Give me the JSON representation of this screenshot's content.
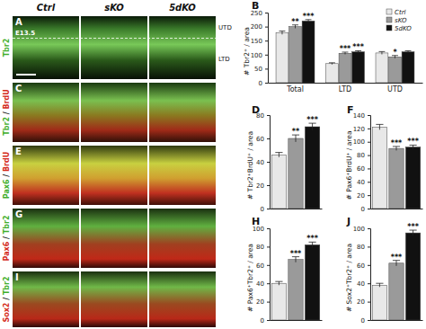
{
  "columns": [
    "Ctrl",
    "sKO",
    "5dKO"
  ],
  "panels": [
    {
      "letter": "A",
      "stain": [
        {
          "text": "Tbr2",
          "color": "#3fae2a"
        }
      ],
      "age": "E13.5",
      "zones": [
        "UTD",
        "LTD"
      ]
    },
    {
      "letter": "C",
      "stain": [
        {
          "text": "Tbr2",
          "color": "#3fae2a"
        },
        {
          "text": " / ",
          "color": "#222222"
        },
        {
          "text": "BrdU",
          "color": "#d42a1a"
        }
      ]
    },
    {
      "letter": "E",
      "stain": [
        {
          "text": "Pax6",
          "color": "#3fae2a"
        },
        {
          "text": " / ",
          "color": "#222222"
        },
        {
          "text": "BrdU",
          "color": "#d42a1a"
        }
      ]
    },
    {
      "letter": "G",
      "stain": [
        {
          "text": "Pax6",
          "color": "#d42a1a"
        },
        {
          "text": " / ",
          "color": "#222222"
        },
        {
          "text": "Tbr2",
          "color": "#3fae2a"
        }
      ]
    },
    {
      "letter": "I",
      "stain": [
        {
          "text": "Sox2",
          "color": "#d42a1a"
        },
        {
          "text": " / ",
          "color": "#222222"
        },
        {
          "text": "Tbr2",
          "color": "#3fae2a"
        }
      ]
    }
  ],
  "chart_data": [
    {
      "type": "bar",
      "title": "B",
      "y_label": "# Tbr2⁺ / area",
      "categories": [
        "Total",
        "LTD",
        "UTD"
      ],
      "series": [
        {
          "name": "Ctrl",
          "color": "#e8e8e8",
          "values": [
            178,
            68,
            106
          ],
          "errors": [
            6,
            3,
            5
          ],
          "annotations": [
            null,
            null,
            null
          ]
        },
        {
          "name": "sKO",
          "color": "#9a9a9a",
          "values": [
            200,
            105,
            92
          ],
          "errors": [
            6,
            4,
            5
          ],
          "annotations": [
            "**",
            "***",
            "*"
          ]
        },
        {
          "name": "5dKO",
          "color": "#111111",
          "values": [
            220,
            110,
            110
          ],
          "errors": [
            5,
            4,
            4
          ],
          "annotations": [
            "***",
            "***",
            null
          ]
        }
      ],
      "ylim": [
        0,
        250
      ],
      "yticks": [
        0,
        50,
        100,
        150,
        200,
        250
      ],
      "legend": "top-right"
    },
    {
      "type": "bar",
      "title": "D",
      "y_label": "# Tbr2⁺BrdU⁺ / area",
      "categories": [
        null,
        null,
        null
      ],
      "values": [
        46,
        60,
        70
      ],
      "errors": [
        2,
        3,
        3
      ],
      "colors": [
        "#e8e8e8",
        "#9a9a9a",
        "#111111"
      ],
      "annotations": [
        null,
        "**",
        "***"
      ],
      "ylim": [
        0,
        80
      ],
      "yticks": [
        0,
        20,
        40,
        60,
        80
      ],
      "tick_labels": "y"
    },
    {
      "type": "bar",
      "title": "F",
      "y_label": "# Pax6⁺BrdU⁺ / area",
      "categories": [
        null,
        null,
        null
      ],
      "values": [
        122,
        90,
        92
      ],
      "errors": [
        4,
        3,
        3
      ],
      "colors": [
        "#e8e8e8",
        "#9a9a9a",
        "#111111"
      ],
      "annotations": [
        null,
        "***",
        "***"
      ],
      "ylim": [
        0,
        140
      ],
      "yticks": [
        0,
        20,
        40,
        60,
        80,
        100,
        120,
        140
      ],
      "tick_labels": "y"
    },
    {
      "type": "bar",
      "title": "H",
      "y_label": "# Pax6⁺Tbr2⁺ / area",
      "categories": [
        null,
        null,
        null
      ],
      "values": [
        40,
        66,
        82
      ],
      "errors": [
        2,
        3,
        3
      ],
      "colors": [
        "#e8e8e8",
        "#9a9a9a",
        "#111111"
      ],
      "annotations": [
        null,
        "***",
        "***"
      ],
      "ylim": [
        0,
        100
      ],
      "yticks": [
        0,
        20,
        40,
        60,
        80,
        100
      ],
      "tick_labels": "y"
    },
    {
      "type": "bar",
      "title": "J",
      "y_label": "# Sox2⁺Tbr2⁺ / area",
      "categories": [
        null,
        null,
        null
      ],
      "values": [
        38,
        62,
        95
      ],
      "errors": [
        2,
        3,
        3
      ],
      "colors": [
        "#e8e8e8",
        "#9a9a9a",
        "#111111"
      ],
      "annotations": [
        null,
        "***",
        "***"
      ],
      "ylim": [
        0,
        100
      ],
      "yticks": [
        0,
        20,
        40,
        60,
        80,
        100
      ],
      "tick_labels": "y"
    }
  ]
}
